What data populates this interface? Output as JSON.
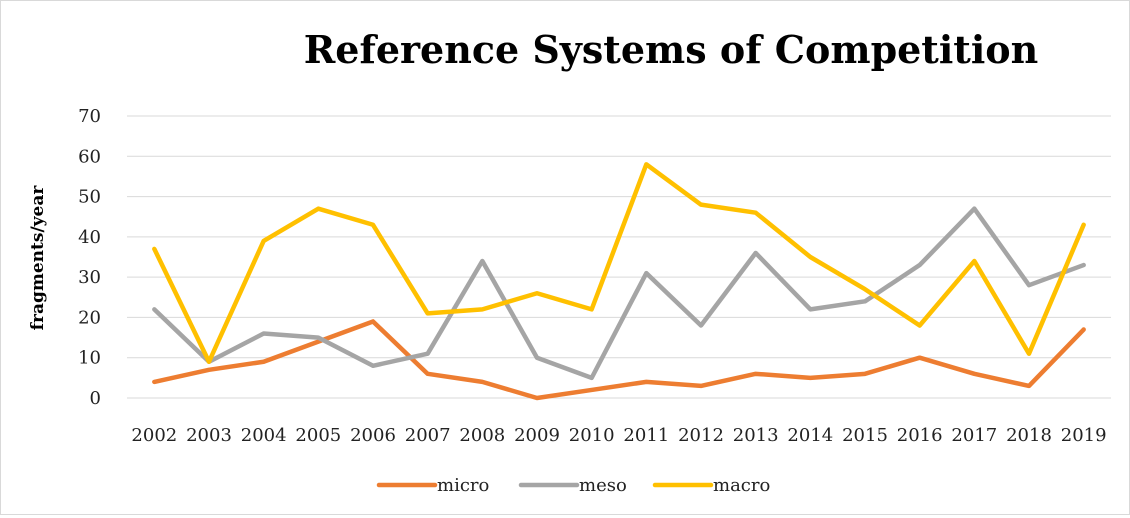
{
  "chart_data": {
    "type": "line",
    "title": "Reference Systems of Competition",
    "xlabel": "",
    "ylabel": "fragments/year",
    "ylim": [
      0,
      70
    ],
    "yticks": [
      0,
      10,
      20,
      30,
      40,
      50,
      60,
      70
    ],
    "grid": true,
    "legend_position": "bottom",
    "categories": [
      "2002",
      "2003",
      "2004",
      "2005",
      "2006",
      "2007",
      "2008",
      "2009",
      "2010",
      "2011",
      "2012",
      "2013",
      "2014",
      "2015",
      "2016",
      "2017",
      "2018",
      "2019"
    ],
    "series": [
      {
        "name": "micro",
        "color": "#ED7D31",
        "values": [
          4,
          7,
          9,
          14,
          19,
          6,
          4,
          0,
          2,
          4,
          3,
          6,
          5,
          6,
          10,
          6,
          3,
          17
        ]
      },
      {
        "name": "meso",
        "color": "#A5A5A5",
        "values": [
          22,
          9,
          16,
          15,
          8,
          11,
          34,
          10,
          5,
          31,
          18,
          36,
          22,
          24,
          33,
          47,
          28,
          33
        ]
      },
      {
        "name": "macro",
        "color": "#FFC000",
        "values": [
          37,
          9,
          39,
          47,
          43,
          21,
          22,
          26,
          22,
          58,
          48,
          46,
          35,
          27,
          18,
          34,
          11,
          43
        ]
      }
    ]
  }
}
